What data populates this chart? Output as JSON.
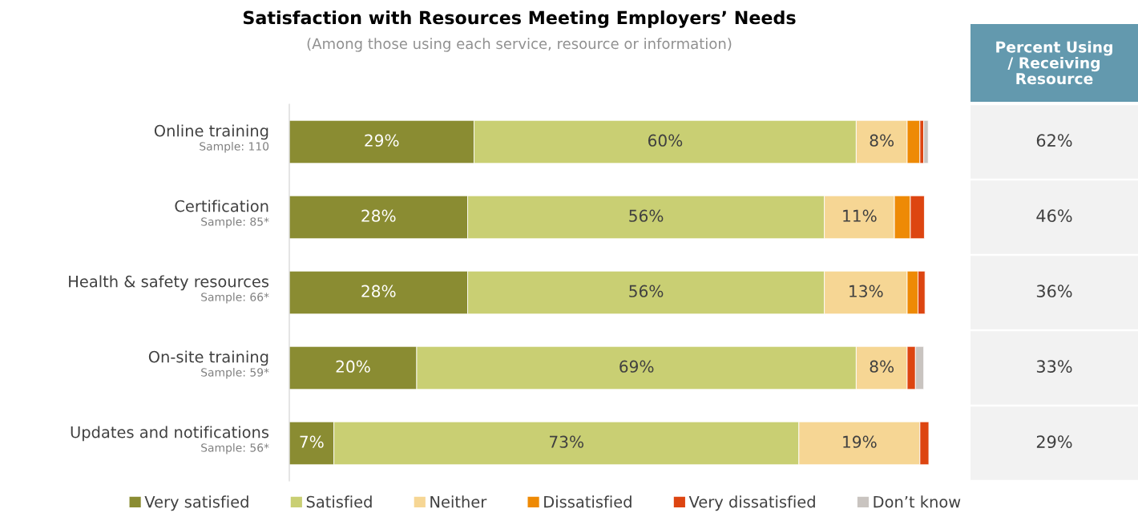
{
  "chart_data": [
    {
      "type": "bar",
      "orientation": "horizontal",
      "stacked": true,
      "title": "Satisfaction with Resources Meeting Employers’ Needs",
      "subtitle": "(Among those using each service, resource or information)",
      "categories": [
        "Online training",
        "Certification",
        "Health & safety resources",
        "On-site training",
        "Updates and notifications"
      ],
      "annotations": [
        "Sample: 110",
        "Sample: 85*",
        "Sample: 66*",
        "Sample: 59*",
        "Sample: 56*"
      ],
      "series": [
        {
          "name": "Very satisfied",
          "color": "#8a8c32",
          "values": [
            29,
            28,
            28,
            20,
            7
          ],
          "value_labels": [
            "29%",
            "28%",
            "28%",
            "20%",
            "7%"
          ]
        },
        {
          "name": "Satisfied",
          "color": "#c9cf73",
          "values": [
            60,
            56,
            56,
            69,
            73
          ],
          "value_labels": [
            "60%",
            "56%",
            "56%",
            "69%",
            "73%"
          ]
        },
        {
          "name": "Neither",
          "color": "#f6d694",
          "values": [
            8,
            11,
            13,
            8,
            19
          ],
          "value_labels": [
            "8%",
            "11%",
            "13%",
            "8%",
            "19%"
          ]
        },
        {
          "name": "Dissatisfied",
          "color": "#ee8a05",
          "values": [
            2,
            2.5,
            1.7,
            null,
            null
          ],
          "value_labels": [
            null,
            null,
            null,
            null,
            null
          ]
        },
        {
          "name": "Very dissatisfied",
          "color": "#dd4511",
          "values": [
            0.6,
            2.2,
            1.1,
            1.3,
            1.4
          ],
          "value_labels": [
            null,
            null,
            null,
            null,
            null
          ]
        },
        {
          "name": "Don’t know",
          "color": "#c9c4c0",
          "values": [
            0.7,
            null,
            null,
            1.3,
            null
          ],
          "value_labels": [
            null,
            null,
            null,
            null,
            null
          ]
        }
      ],
      "legend": "bottom"
    },
    {
      "type": "other",
      "title": "Percent Using\n/ Receiving\nResource",
      "value_labels": [
        "62%",
        "46%",
        "36%",
        "33%",
        "29%"
      ]
    }
  ]
}
